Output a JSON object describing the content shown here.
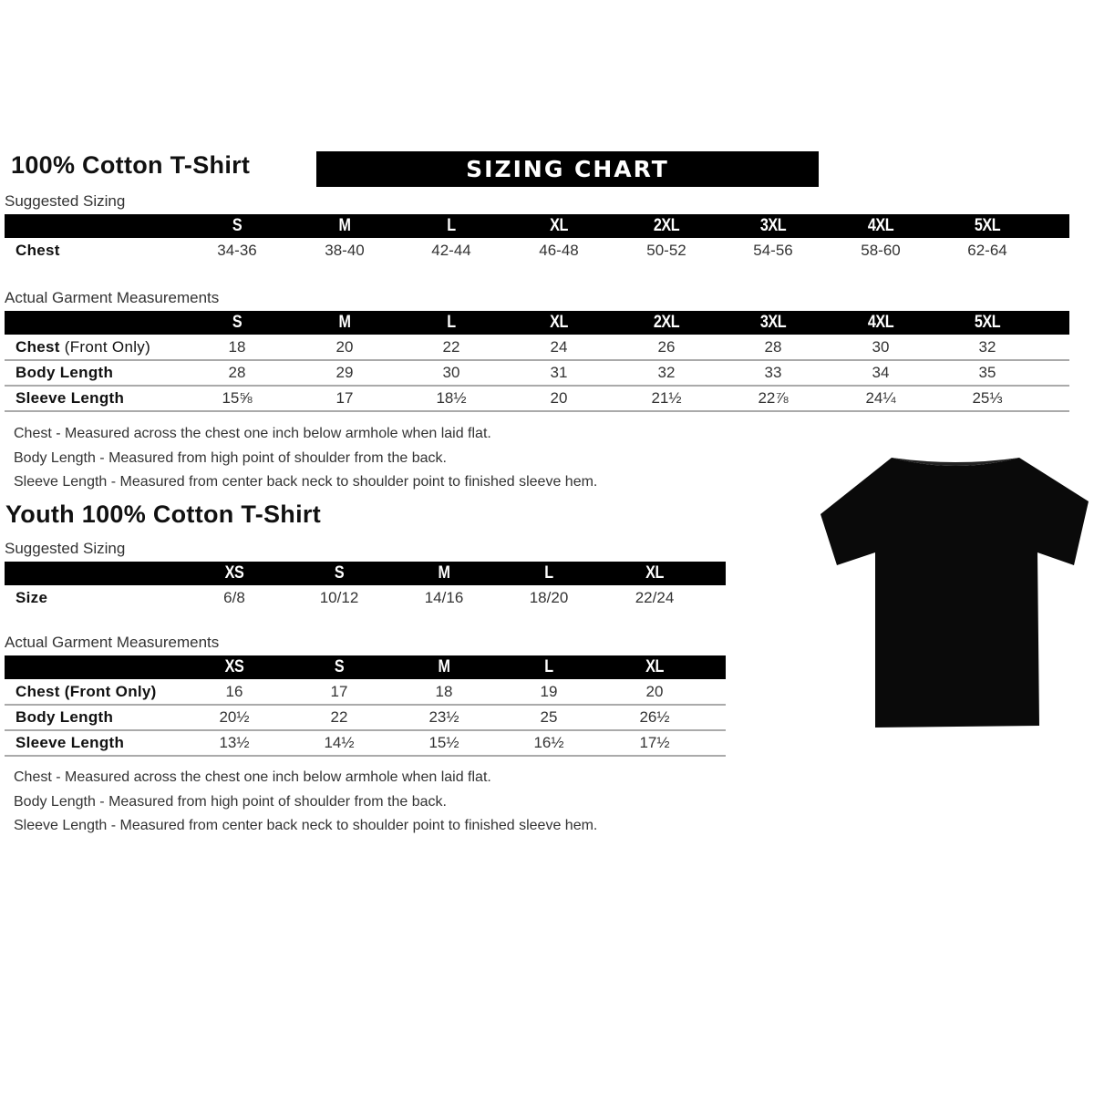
{
  "adult": {
    "title": "100% Cotton T-Shirt",
    "banner": "SIZING CHART",
    "suggested_label": "Suggested Sizing",
    "sizes": [
      "S",
      "M",
      "L",
      "XL",
      "2XL",
      "3XL",
      "4XL",
      "5XL"
    ],
    "suggested_rows": [
      {
        "label": "Chest",
        "values": [
          "34-36",
          "38-40",
          "42-44",
          "46-48",
          "50-52",
          "54-56",
          "58-60",
          "62-64"
        ]
      }
    ],
    "actual_label": "Actual Garment Measurements",
    "actual_rows": [
      {
        "label": "Chest",
        "label_suffix": " (Front Only)",
        "values": [
          "18",
          "20",
          "22",
          "24",
          "26",
          "28",
          "30",
          "32"
        ]
      },
      {
        "label": "Body Length",
        "values": [
          "28",
          "29",
          "30",
          "31",
          "32",
          "33",
          "34",
          "35"
        ]
      },
      {
        "label": "Sleeve Length",
        "values": [
          "15⅝",
          "17",
          "18½",
          "20",
          "21½",
          "22⅞",
          "24¼",
          "25⅓"
        ]
      }
    ],
    "notes": [
      "Chest - Measured across the chest one inch below armhole when laid flat.",
      "Body Length - Measured from high point of shoulder from the back.",
      "Sleeve Length - Measured from center back neck to shoulder point to finished sleeve hem."
    ]
  },
  "youth": {
    "title": "Youth 100% Cotton T-Shirt",
    "suggested_label": "Suggested Sizing",
    "sizes": [
      "XS",
      "S",
      "M",
      "L",
      "XL"
    ],
    "suggested_rows": [
      {
        "label": "Size",
        "values": [
          "6/8",
          "10/12",
          "14/16",
          "18/20",
          "22/24"
        ]
      }
    ],
    "actual_label": "Actual Garment Measurements",
    "actual_rows": [
      {
        "label": "Chest (Front Only)",
        "values": [
          "16",
          "17",
          "18",
          "19",
          "20"
        ]
      },
      {
        "label": "Body Length",
        "values": [
          "20½",
          "22",
          "23½",
          "25",
          "26½"
        ]
      },
      {
        "label": "Sleeve Length",
        "values": [
          "13½",
          "14½",
          "15½",
          "16½",
          "17½"
        ]
      }
    ],
    "notes": [
      "Chest - Measured across the chest one inch below armhole when laid flat.",
      "Body Length - Measured from high point of shoulder from the back.",
      "Sleeve Length - Measured from center back neck to shoulder point to finished sleeve hem."
    ]
  },
  "image": {
    "icon": "tshirt-icon",
    "color": "#000000"
  }
}
